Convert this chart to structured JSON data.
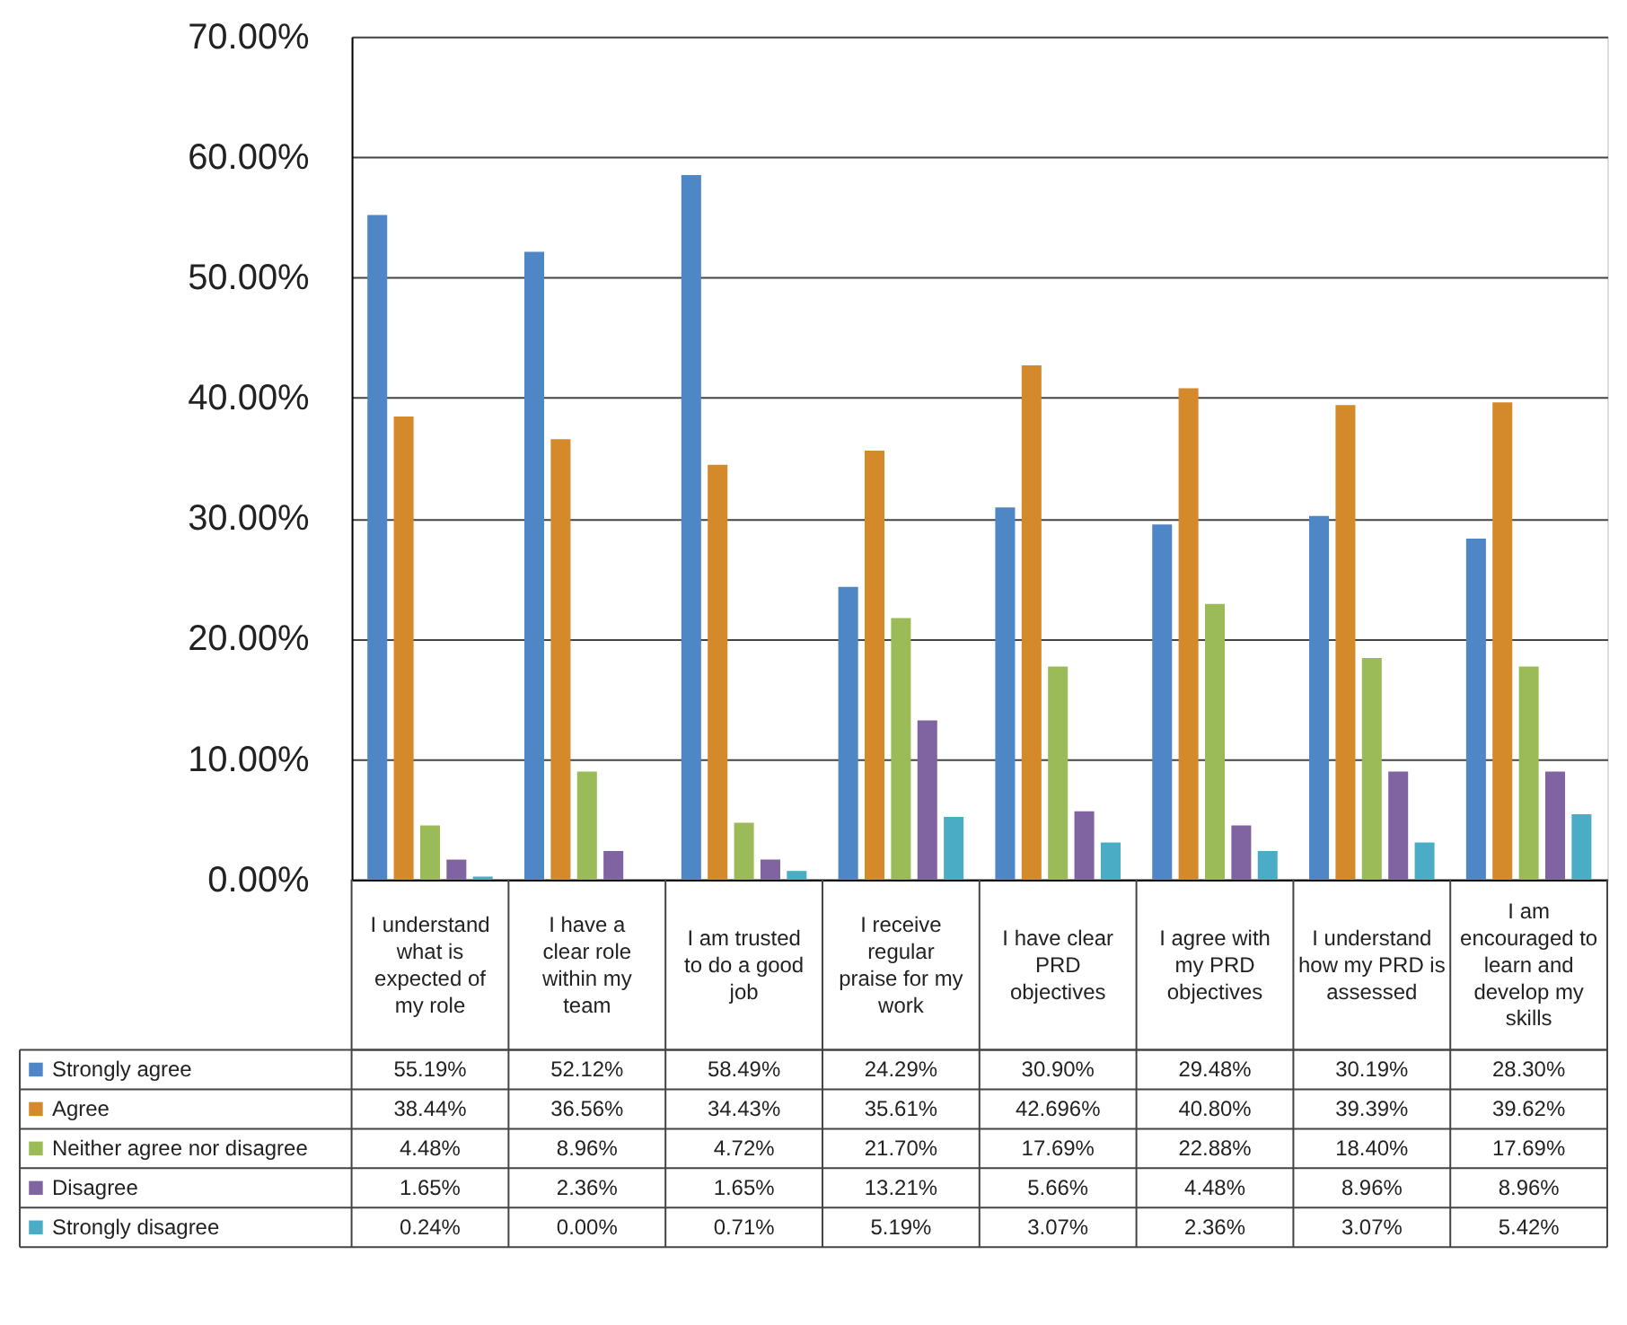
{
  "chart_data": {
    "type": "bar",
    "categories": [
      "I understand what is expected of my role",
      "I have a clear role within my team",
      "I am trusted to do a good job",
      "I receive regular praise for my work",
      "I have clear PRD objectives",
      "I agree with my PRD objectives",
      "I understand how my PRD is assessed",
      "I am encouraged to learn and develop my skills"
    ],
    "series": [
      {
        "name": "Strongly agree",
        "color": "#4f86c6",
        "values": [
          55.19,
          52.12,
          58.49,
          24.29,
          30.9,
          29.48,
          30.19,
          28.3
        ],
        "value_labels": [
          "55.19%",
          "52.12%",
          "58.49%",
          "24.29%",
          "30.90%",
          "29.48%",
          "30.19%",
          "28.30%"
        ]
      },
      {
        "name": "Agree",
        "color": "#d4892a",
        "values": [
          38.44,
          36.56,
          34.43,
          35.61,
          42.696,
          40.8,
          39.39,
          39.62
        ],
        "value_labels": [
          "38.44%",
          "36.56%",
          "34.43%",
          "35.61%",
          "42.696%",
          "40.80%",
          "39.39%",
          "39.62%"
        ]
      },
      {
        "name": "Neither agree nor disagree",
        "color": "#9bbb59",
        "values": [
          4.48,
          8.96,
          4.72,
          21.7,
          17.69,
          22.88,
          18.4,
          17.69
        ],
        "value_labels": [
          "4.48%",
          "8.96%",
          "4.72%",
          "21.70%",
          "17.69%",
          "22.88%",
          "18.40%",
          "17.69%"
        ]
      },
      {
        "name": "Disagree",
        "color": "#8064a2",
        "values": [
          1.65,
          2.36,
          1.65,
          13.21,
          5.66,
          4.48,
          8.96,
          8.96
        ],
        "value_labels": [
          "1.65%",
          "2.36%",
          "1.65%",
          "13.21%",
          "5.66%",
          "4.48%",
          "8.96%",
          "8.96%"
        ]
      },
      {
        "name": "Strongly disagree",
        "color": "#4bacc6",
        "values": [
          0.24,
          0.0,
          0.71,
          5.19,
          3.07,
          2.36,
          3.07,
          5.42
        ],
        "value_labels": [
          "0.24%",
          "0.00%",
          "0.71%",
          "5.19%",
          "3.07%",
          "2.36%",
          "3.07%",
          "5.42%"
        ]
      }
    ],
    "ylim": [
      0,
      70
    ],
    "yticks": [
      {
        "value": 0,
        "label": "0.00%"
      },
      {
        "value": 10,
        "label": "10.00%"
      },
      {
        "value": 20,
        "label": "20.00%"
      },
      {
        "value": 30,
        "label": "30.00%"
      },
      {
        "value": 40,
        "label": "40.00%"
      },
      {
        "value": 50,
        "label": "50.00%"
      },
      {
        "value": 60,
        "label": "60.00%"
      },
      {
        "value": 70,
        "label": "70.00%"
      }
    ],
    "grid": "y",
    "legend": "bottom left"
  }
}
